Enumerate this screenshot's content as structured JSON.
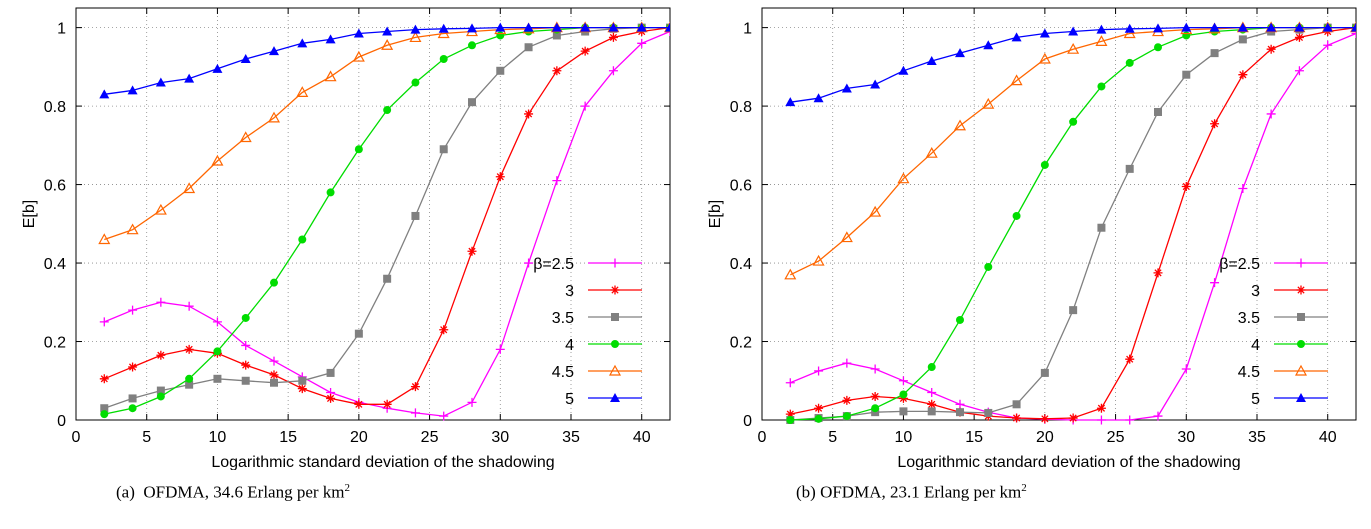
{
  "captions": [
    {
      "prefix": "(a)",
      "text": "OFDMA, 34.6 Erlang per km",
      "sup": "2"
    },
    {
      "prefix": "(b)",
      "text": "OFDMA, 23.1 Erlang per km",
      "sup": "2"
    }
  ],
  "chart_data": [
    {
      "type": "line",
      "title": "",
      "xlabel": "Logarithmic standard deviation of the shadowing",
      "ylabel": "E[b]",
      "xlim": [
        0,
        42
      ],
      "ylim": [
        0,
        1.05
      ],
      "xticks": [
        0,
        5,
        10,
        15,
        20,
        25,
        30,
        35,
        40
      ],
      "yticks": [
        0,
        0.2,
        0.4,
        0.6,
        0.8,
        1
      ],
      "grid": true,
      "legend_position": "center-right",
      "legend_title": "β=",
      "x": [
        2,
        4,
        6,
        8,
        10,
        12,
        14,
        16,
        18,
        20,
        22,
        24,
        26,
        28,
        30,
        32,
        34,
        36,
        38,
        40,
        42
      ],
      "series": [
        {
          "name": "2.5",
          "color": "#ff00ff",
          "marker": "plus",
          "values": [
            0.25,
            0.28,
            0.3,
            0.29,
            0.25,
            0.19,
            0.15,
            0.11,
            0.07,
            0.045,
            0.03,
            0.018,
            0.01,
            0.045,
            0.18,
            0.4,
            0.61,
            0.8,
            0.89,
            0.96,
            0.99
          ]
        },
        {
          "name": "3",
          "color": "#ff0000",
          "marker": "star",
          "values": [
            0.105,
            0.135,
            0.165,
            0.18,
            0.17,
            0.14,
            0.115,
            0.08,
            0.055,
            0.04,
            0.04,
            0.085,
            0.23,
            0.43,
            0.62,
            0.78,
            0.89,
            0.94,
            0.975,
            0.99,
            1.0
          ]
        },
        {
          "name": "3.5",
          "color": "#808080",
          "marker": "square",
          "values": [
            0.03,
            0.055,
            0.075,
            0.09,
            0.105,
            0.1,
            0.095,
            0.1,
            0.12,
            0.22,
            0.36,
            0.52,
            0.69,
            0.81,
            0.89,
            0.95,
            0.98,
            0.99,
            0.997,
            1.0,
            1.0
          ]
        },
        {
          "name": "4",
          "color": "#00dd00",
          "marker": "circle",
          "values": [
            0.015,
            0.03,
            0.06,
            0.105,
            0.175,
            0.26,
            0.35,
            0.46,
            0.58,
            0.69,
            0.79,
            0.86,
            0.92,
            0.955,
            0.98,
            0.99,
            0.995,
            1.0,
            1.0,
            1.0,
            1.0
          ]
        },
        {
          "name": "4.5",
          "color": "#ff6600",
          "marker": "triangle",
          "values": [
            0.46,
            0.485,
            0.535,
            0.59,
            0.66,
            0.72,
            0.77,
            0.835,
            0.875,
            0.925,
            0.955,
            0.975,
            0.985,
            0.99,
            0.995,
            0.997,
            1.0,
            1.0,
            1.0,
            1.0,
            1.0
          ]
        },
        {
          "name": "5",
          "color": "#0000ff",
          "marker": "filled-triangle",
          "values": [
            0.83,
            0.84,
            0.86,
            0.87,
            0.895,
            0.92,
            0.94,
            0.96,
            0.97,
            0.985,
            0.99,
            0.995,
            0.997,
            0.998,
            1.0,
            1.0,
            1.0,
            1.0,
            1.0,
            1.0,
            1.0
          ]
        }
      ]
    },
    {
      "type": "line",
      "title": "",
      "xlabel": "Logarithmic standard deviation of the shadowing",
      "ylabel": "E[b]",
      "xlim": [
        0,
        42
      ],
      "ylim": [
        0,
        1.05
      ],
      "xticks": [
        0,
        5,
        10,
        15,
        20,
        25,
        30,
        35,
        40
      ],
      "yticks": [
        0,
        0.2,
        0.4,
        0.6,
        0.8,
        1
      ],
      "grid": true,
      "legend_position": "center-right",
      "legend_title": "β=",
      "x": [
        2,
        4,
        6,
        8,
        10,
        12,
        14,
        16,
        18,
        20,
        22,
        24,
        26,
        28,
        30,
        32,
        34,
        36,
        38,
        40,
        42
      ],
      "series": [
        {
          "name": "2.5",
          "color": "#ff00ff",
          "marker": "plus",
          "values": [
            0.095,
            0.125,
            0.145,
            0.13,
            0.1,
            0.07,
            0.04,
            0.02,
            0.005,
            0.002,
            0.0,
            0.0,
            0.0,
            0.01,
            0.13,
            0.35,
            0.59,
            0.78,
            0.89,
            0.955,
            0.985
          ]
        },
        {
          "name": "3",
          "color": "#ff0000",
          "marker": "star",
          "values": [
            0.015,
            0.03,
            0.05,
            0.06,
            0.055,
            0.04,
            0.02,
            0.01,
            0.005,
            0.003,
            0.005,
            0.03,
            0.155,
            0.375,
            0.595,
            0.755,
            0.88,
            0.945,
            0.975,
            0.99,
            1.0
          ]
        },
        {
          "name": "3.5",
          "color": "#808080",
          "marker": "square",
          "values": [
            0.0,
            0.005,
            0.01,
            0.02,
            0.022,
            0.022,
            0.02,
            0.018,
            0.04,
            0.12,
            0.28,
            0.49,
            0.64,
            0.785,
            0.88,
            0.935,
            0.97,
            0.99,
            0.995,
            1.0,
            1.0
          ]
        },
        {
          "name": "4",
          "color": "#00dd00",
          "marker": "circle",
          "values": [
            0.0,
            0.003,
            0.01,
            0.03,
            0.065,
            0.135,
            0.255,
            0.39,
            0.52,
            0.65,
            0.76,
            0.85,
            0.91,
            0.95,
            0.98,
            0.99,
            0.995,
            1.0,
            1.0,
            1.0,
            1.0
          ]
        },
        {
          "name": "4.5",
          "color": "#ff6600",
          "marker": "triangle",
          "values": [
            0.37,
            0.405,
            0.465,
            0.53,
            0.615,
            0.68,
            0.75,
            0.805,
            0.865,
            0.92,
            0.945,
            0.965,
            0.985,
            0.99,
            0.995,
            0.997,
            1.0,
            1.0,
            1.0,
            1.0,
            1.0
          ]
        },
        {
          "name": "5",
          "color": "#0000ff",
          "marker": "filled-triangle",
          "values": [
            0.81,
            0.82,
            0.845,
            0.855,
            0.89,
            0.915,
            0.935,
            0.955,
            0.975,
            0.985,
            0.99,
            0.995,
            0.997,
            0.998,
            1.0,
            1.0,
            1.0,
            1.0,
            1.0,
            1.0,
            1.0
          ]
        }
      ]
    }
  ]
}
